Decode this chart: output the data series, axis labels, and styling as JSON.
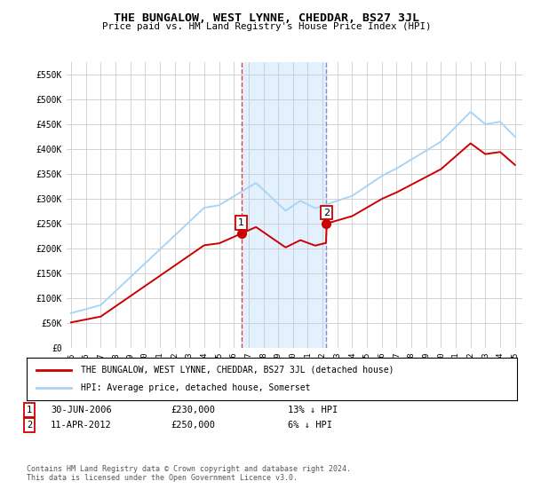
{
  "title": "THE BUNGALOW, WEST LYNNE, CHEDDAR, BS27 3JL",
  "subtitle": "Price paid vs. HM Land Registry's House Price Index (HPI)",
  "ylabel_ticks": [
    "£0",
    "£50K",
    "£100K",
    "£150K",
    "£200K",
    "£250K",
    "£300K",
    "£350K",
    "£400K",
    "£450K",
    "£500K",
    "£550K"
  ],
  "ytick_values": [
    0,
    50000,
    100000,
    150000,
    200000,
    250000,
    300000,
    350000,
    400000,
    450000,
    500000,
    550000
  ],
  "ylim": [
    0,
    575000
  ],
  "x_start_year": 1995,
  "x_end_year": 2025,
  "purchase1": {
    "year": 2006.5,
    "price": 230000,
    "label": "1"
  },
  "purchase2": {
    "year": 2012.25,
    "price": 250000,
    "label": "2"
  },
  "hpi_color": "#aad4f5",
  "price_color": "#cc0000",
  "vline1_color": "#dd4444",
  "vline2_color": "#8888cc",
  "shaded_color": "#ddeeff",
  "legend_house_label": "THE BUNGALOW, WEST LYNNE, CHEDDAR, BS27 3JL (detached house)",
  "legend_hpi_label": "HPI: Average price, detached house, Somerset",
  "footnote": "Contains HM Land Registry data © Crown copyright and database right 2024.\nThis data is licensed under the Open Government Licence v3.0.",
  "background_color": "#ffffff",
  "plot_bg_color": "#ffffff",
  "grid_color": "#cccccc"
}
